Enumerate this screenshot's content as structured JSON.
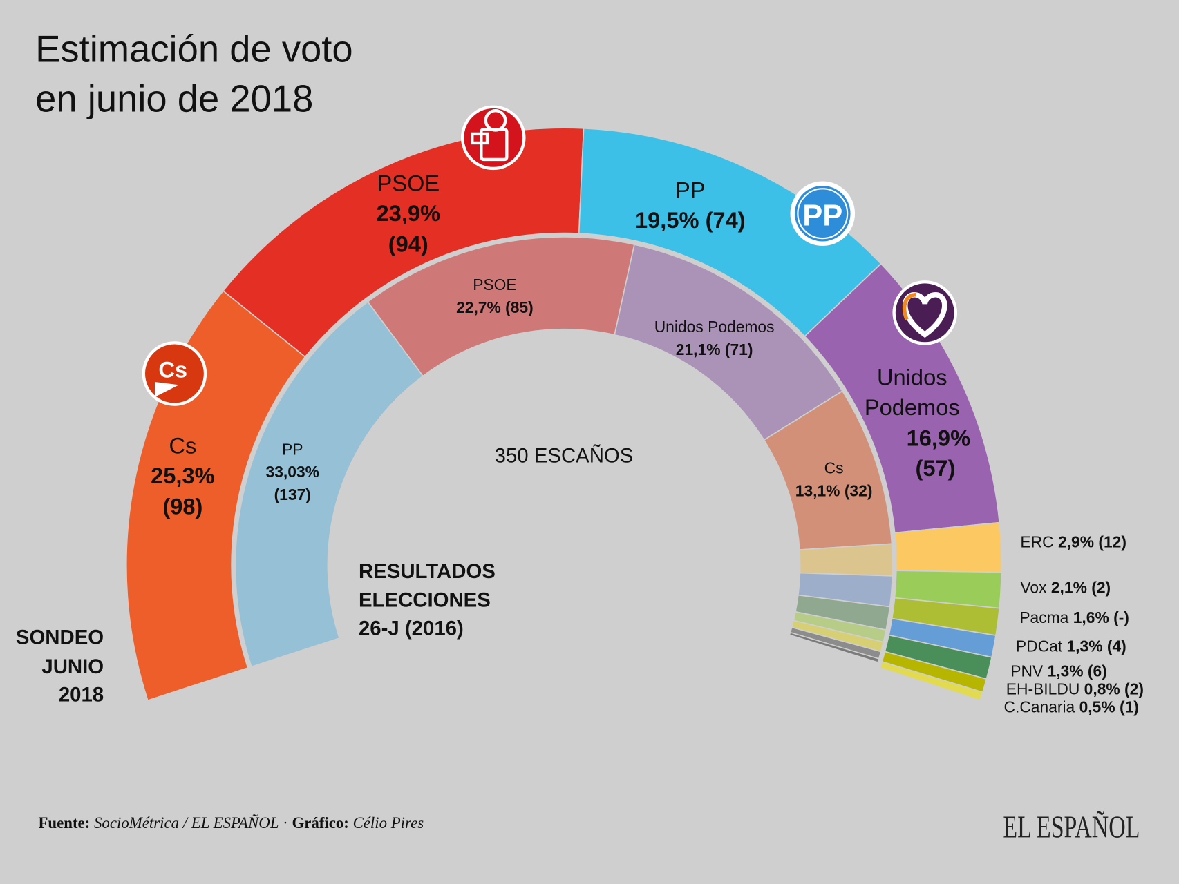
{
  "title_line1": "Estimación de voto",
  "title_line2": "en junio de 2018",
  "center_label": "350 ESCAÑOS",
  "outer_ring_label": [
    "SONDEO",
    "JUNIO",
    "2018"
  ],
  "inner_ring_label": [
    "RESULTADOS",
    "ELECCIONES",
    "26-J (2016)"
  ],
  "footer": {
    "source_label": "Fuente:",
    "source_value": "SocioMétrica / EL ESPAÑOL",
    "separator": "·",
    "graphic_label": "Gráfico:",
    "graphic_value": "Célio Pires",
    "logo": "EL ESPAÑOL"
  },
  "chart_data": [
    {
      "type": "pie",
      "variant": "half-donut outer ring",
      "title": "SONDEO JUNIO 2018",
      "slices": [
        {
          "party": "Cs",
          "vote": 25.3,
          "vote_label": "25,3%",
          "seats": "(98)",
          "color": "#ee5e2a",
          "logo": "cs-logo-icon"
        },
        {
          "party": "PSOE",
          "vote": 23.9,
          "vote_label": "23,9%",
          "seats": "(94)",
          "color": "#e32f24",
          "logo": "psoe-rose-logo-icon"
        },
        {
          "party": "PP",
          "vote": 19.5,
          "vote_label": "19,5%",
          "seats": "(74)",
          "color": "#3cc0e8",
          "logo": "pp-logo-icon"
        },
        {
          "party": "Unidos Podemos",
          "party_lines": [
            "Unidos",
            "Podemos"
          ],
          "vote": 16.9,
          "vote_label": "16,9%",
          "seats": "(57)",
          "color": "#9a63b0",
          "logo": "heart-logo-icon"
        },
        {
          "party": "ERC",
          "vote": 2.9,
          "vote_label": "2,9%",
          "seats": "(12)",
          "color": "#fbc862"
        },
        {
          "party": "Vox",
          "vote": 2.1,
          "vote_label": "2,1%",
          "seats": "(2)",
          "color": "#99cc58"
        },
        {
          "party": "Pacma",
          "vote": 1.6,
          "vote_label": "1,6%",
          "seats": "(-)",
          "color": "#adbd34"
        },
        {
          "party": "PDCat",
          "vote": 1.3,
          "vote_label": "1,3%",
          "seats": "(4)",
          "color": "#659ed6"
        },
        {
          "party": "PNV",
          "vote": 1.3,
          "vote_label": "1,3%",
          "seats": "(6)",
          "color": "#4a8f5a"
        },
        {
          "party": "EH-BILDU",
          "vote": 0.8,
          "vote_label": "0,8%",
          "seats": "(2)",
          "color": "#b6b500"
        },
        {
          "party": "C.Canaria",
          "vote": 0.5,
          "vote_label": "0,5%",
          "seats": "(1)",
          "color": "#e2da4f"
        }
      ]
    },
    {
      "type": "pie",
      "variant": "half-donut inner ring",
      "title": "RESULTADOS ELECCIONES 26-J (2016)",
      "slices": [
        {
          "party": "PP",
          "vote": 33.03,
          "vote_label": "33,03%",
          "seats": "(137)",
          "color": "#96c0d6"
        },
        {
          "party": "PSOE",
          "vote": 22.7,
          "vote_label": "22,7%",
          "seats": "(85)",
          "color": "#cf7878"
        },
        {
          "party": "Unidos Podemos",
          "vote": 21.1,
          "vote_label": "21,1%",
          "seats": "(71)",
          "color": "#ab93b8"
        },
        {
          "party": "Cs",
          "vote": 13.1,
          "vote_label": "13,1%",
          "seats": "(32)",
          "color": "#d39079"
        },
        {
          "vote": 2.6,
          "color": "#dcc48f"
        },
        {
          "vote": 2.5,
          "color": "#9daecb"
        },
        {
          "vote": 1.9,
          "color": "#8fa88f"
        },
        {
          "vote": 1.0,
          "color": "#b7cc86"
        },
        {
          "vote": 0.8,
          "color": "#d7cf73"
        },
        {
          "vote": 0.6,
          "color": "#8c8c8c"
        },
        {
          "vote": 0.3,
          "color": "#7a7a7a"
        }
      ]
    }
  ],
  "colors": {
    "background": "#cfcfcf",
    "text": "#111111"
  }
}
